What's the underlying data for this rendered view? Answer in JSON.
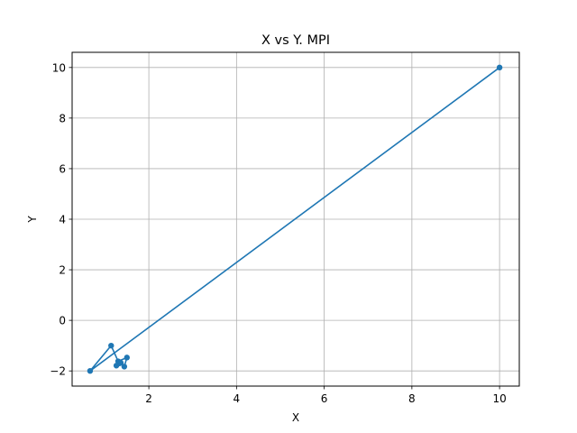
{
  "chart_data": {
    "type": "line",
    "title": "X vs Y. MPI",
    "xlabel": "X",
    "ylabel": "Y",
    "xlim": [
      0.25,
      10.45
    ],
    "ylim": [
      -2.6,
      10.6
    ],
    "xticks": [
      2,
      4,
      6,
      8,
      10
    ],
    "yticks": [
      -2,
      0,
      2,
      4,
      6,
      8,
      10
    ],
    "xtick_labels": [
      "2",
      "4",
      "6",
      "8",
      "10"
    ],
    "ytick_labels": [
      "−2",
      "0",
      "2",
      "4",
      "6",
      "8",
      "10"
    ],
    "grid": true,
    "legend": "none",
    "series": [
      {
        "color": "#1f77b4",
        "marker": "circle",
        "x": [
          10.0,
          0.66,
          1.14,
          1.3,
          1.5,
          1.44,
          1.36,
          1.33,
          1.26
        ],
        "y": [
          10.0,
          -2.0,
          -1.0,
          -1.62,
          -1.47,
          -1.83,
          -1.68,
          -1.7,
          -1.79
        ]
      }
    ]
  }
}
